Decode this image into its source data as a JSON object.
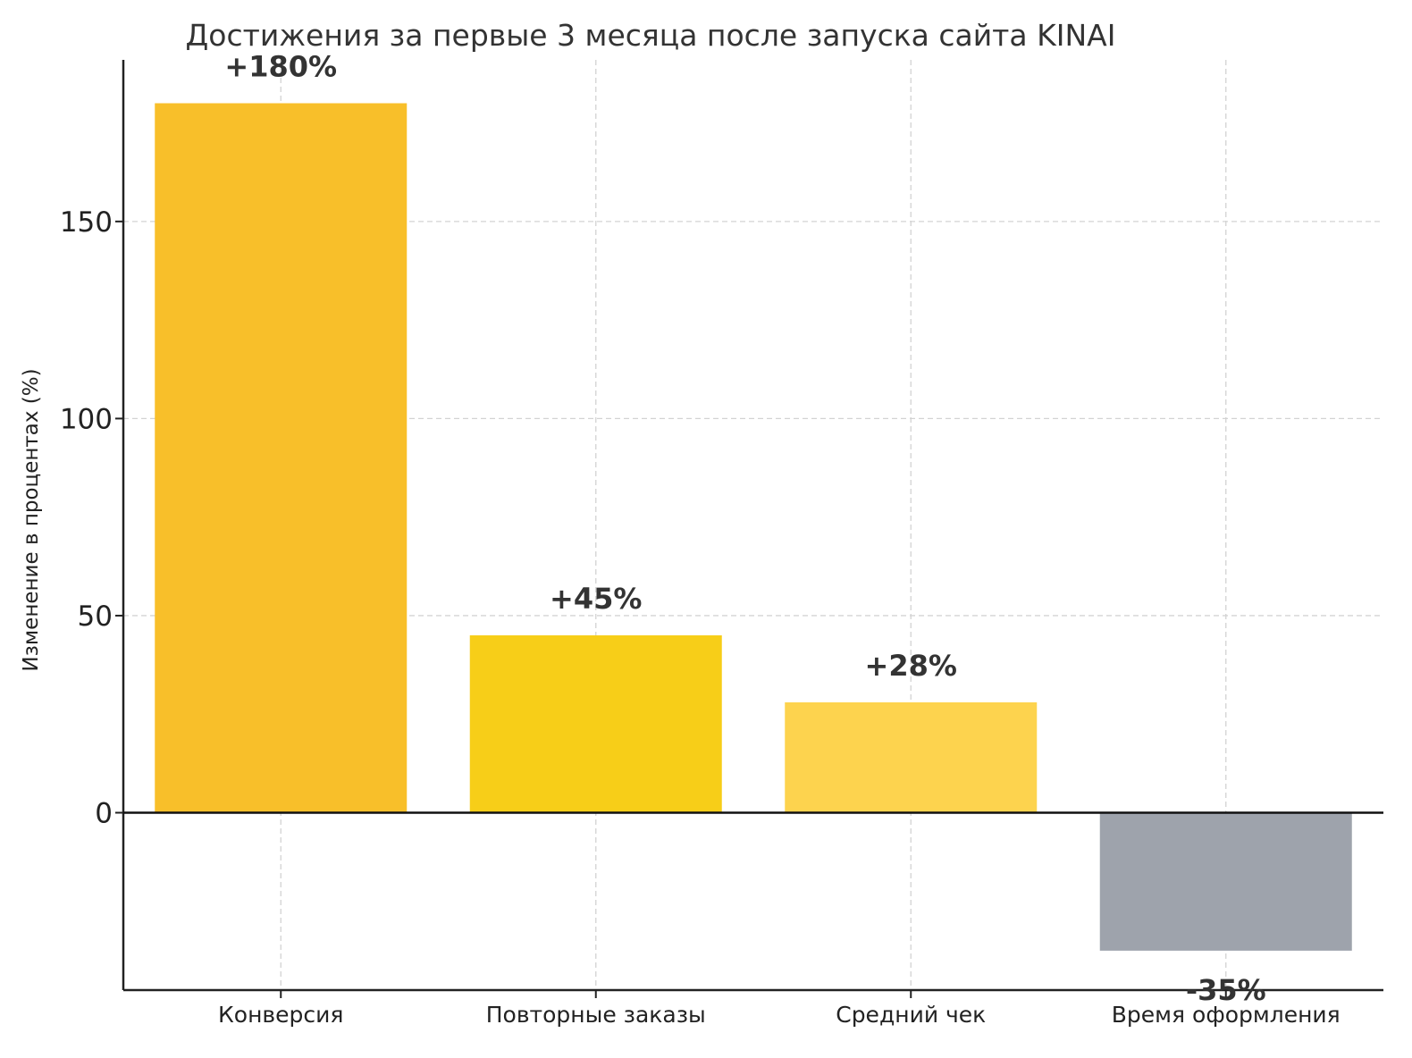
{
  "chart_data": {
    "type": "bar",
    "title": "Достижения за первые 3 месяца после запуска сайта KINAI",
    "xlabel": "",
    "ylabel": "Изменение в процентах (%)",
    "categories": [
      "Конверсия",
      "Повторные заказы",
      "Средний чек",
      "Время оформления"
    ],
    "values": [
      180,
      45,
      28,
      -35
    ],
    "value_labels": [
      "+180%",
      "+45%",
      "+28%",
      "-35%"
    ],
    "colors": [
      "#F8BF2A",
      "#F7CE18",
      "#FDD34E",
      "#9EA3AC"
    ],
    "ylim": [
      -45,
      191
    ],
    "yticks": [
      0,
      50,
      100,
      150
    ],
    "grid": true,
    "zero_line": true
  }
}
